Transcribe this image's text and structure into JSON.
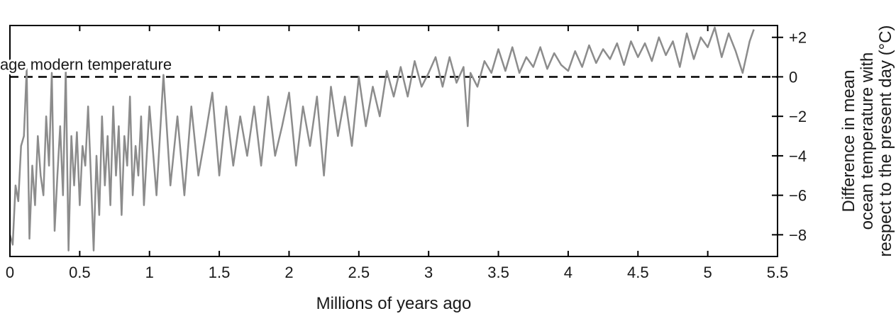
{
  "chart_data": {
    "type": "line",
    "title": "",
    "xlabel": "Millions of years ago",
    "ylabel_lines": [
      "Difference in mean",
      "ocean temperature with",
      "respect to the present day (°C)"
    ],
    "xlim": [
      0,
      5.5
    ],
    "ylim": [
      -9.1,
      2.6
    ],
    "x_ticks": [
      0,
      0.5,
      1,
      1.5,
      2,
      2.5,
      3,
      3.5,
      4,
      4.5,
      5,
      5.5
    ],
    "x_tick_labels": [
      "0",
      "0.5",
      "1",
      "1.5",
      "2",
      "2.5",
      "3",
      "3.5",
      "4",
      "4.5",
      "5",
      "5.5"
    ],
    "y_ticks": [
      2,
      0,
      -2,
      -4,
      -6,
      -8
    ],
    "y_tick_labels": [
      "+2",
      "0",
      "−2",
      "−4",
      "−6",
      "−8"
    ],
    "y_axis_side": "right",
    "grid": false,
    "reference_line": {
      "y": 0,
      "style": "dashed",
      "label": "Average modern temperature"
    },
    "series": [
      {
        "color": "#8c8c8c",
        "x": [
          0,
          0.02,
          0.04,
          0.06,
          0.08,
          0.1,
          0.12,
          0.14,
          0.16,
          0.18,
          0.2,
          0.22,
          0.24,
          0.26,
          0.28,
          0.3,
          0.32,
          0.34,
          0.36,
          0.38,
          0.4,
          0.42,
          0.44,
          0.46,
          0.48,
          0.5,
          0.52,
          0.54,
          0.56,
          0.58,
          0.6,
          0.62,
          0.64,
          0.66,
          0.68,
          0.7,
          0.72,
          0.74,
          0.76,
          0.78,
          0.8,
          0.82,
          0.84,
          0.86,
          0.88,
          0.9,
          0.92,
          0.94,
          0.96,
          0.98,
          1.0,
          1.05,
          1.1,
          1.15,
          1.2,
          1.25,
          1.3,
          1.35,
          1.4,
          1.45,
          1.5,
          1.55,
          1.6,
          1.65,
          1.7,
          1.75,
          1.8,
          1.85,
          1.9,
          1.95,
          2.0,
          2.05,
          2.1,
          2.15,
          2.2,
          2.25,
          2.3,
          2.35,
          2.4,
          2.45,
          2.5,
          2.55,
          2.6,
          2.65,
          2.7,
          2.75,
          2.8,
          2.85,
          2.9,
          2.95,
          3.0,
          3.05,
          3.1,
          3.15,
          3.2,
          3.25,
          3.28,
          3.3,
          3.35,
          3.4,
          3.45,
          3.5,
          3.55,
          3.6,
          3.65,
          3.7,
          3.75,
          3.8,
          3.85,
          3.9,
          3.95,
          4.0,
          4.05,
          4.1,
          4.15,
          4.2,
          4.25,
          4.3,
          4.35,
          4.4,
          4.45,
          4.5,
          4.55,
          4.6,
          4.65,
          4.7,
          4.75,
          4.8,
          4.85,
          4.9,
          4.95,
          5.0,
          5.05,
          5.1,
          5.15,
          5.2,
          5.25,
          5.3,
          5.33
        ],
        "values": [
          -8.0,
          -8.5,
          -5.5,
          -6.3,
          -3.5,
          -3.0,
          0.4,
          -8.2,
          -4.5,
          -6.5,
          -3.0,
          -5.0,
          -6.0,
          -2.0,
          -4.5,
          0.2,
          -7.8,
          -5.0,
          -2.5,
          -6.0,
          0.4,
          -8.8,
          -3.0,
          -5.5,
          -2.8,
          -6.5,
          -3.5,
          -4.5,
          -1.5,
          -5.0,
          -8.8,
          -4.0,
          -7.0,
          -2.0,
          -5.5,
          -3.0,
          -6.5,
          -1.5,
          -5.0,
          -2.5,
          -7.0,
          -3.0,
          -4.5,
          -1.0,
          -6.0,
          -3.5,
          -5.0,
          -2.0,
          -6.5,
          -4.0,
          -1.5,
          -6.0,
          0.1,
          -5.5,
          -2.0,
          -6.0,
          -1.5,
          -5.0,
          -3.0,
          -0.8,
          -5.0,
          -1.5,
          -4.5,
          -2.0,
          -4.0,
          -1.5,
          -4.5,
          -1.0,
          -4.0,
          -2.5,
          -0.8,
          -4.5,
          -1.5,
          -3.5,
          -1.0,
          -5.0,
          -0.5,
          -3.0,
          -1.0,
          -3.5,
          0.0,
          -2.5,
          -0.5,
          -2.0,
          0.3,
          -1.0,
          0.5,
          -1.0,
          0.8,
          -0.5,
          0.2,
          1.0,
          -0.5,
          1.0,
          -0.3,
          0.5,
          -2.5,
          0.2,
          -0.5,
          0.8,
          0.2,
          1.4,
          0.3,
          1.5,
          0.2,
          1.0,
          0.5,
          1.5,
          0.4,
          1.2,
          0.6,
          0.3,
          1.3,
          0.5,
          1.6,
          0.7,
          1.4,
          0.9,
          1.7,
          0.6,
          1.8,
          1.0,
          1.7,
          0.8,
          2.0,
          1.1,
          1.8,
          0.5,
          2.2,
          0.9,
          2.0,
          1.5,
          2.5,
          1.0,
          2.2,
          1.3,
          0.2,
          1.8,
          2.4
        ]
      }
    ]
  }
}
